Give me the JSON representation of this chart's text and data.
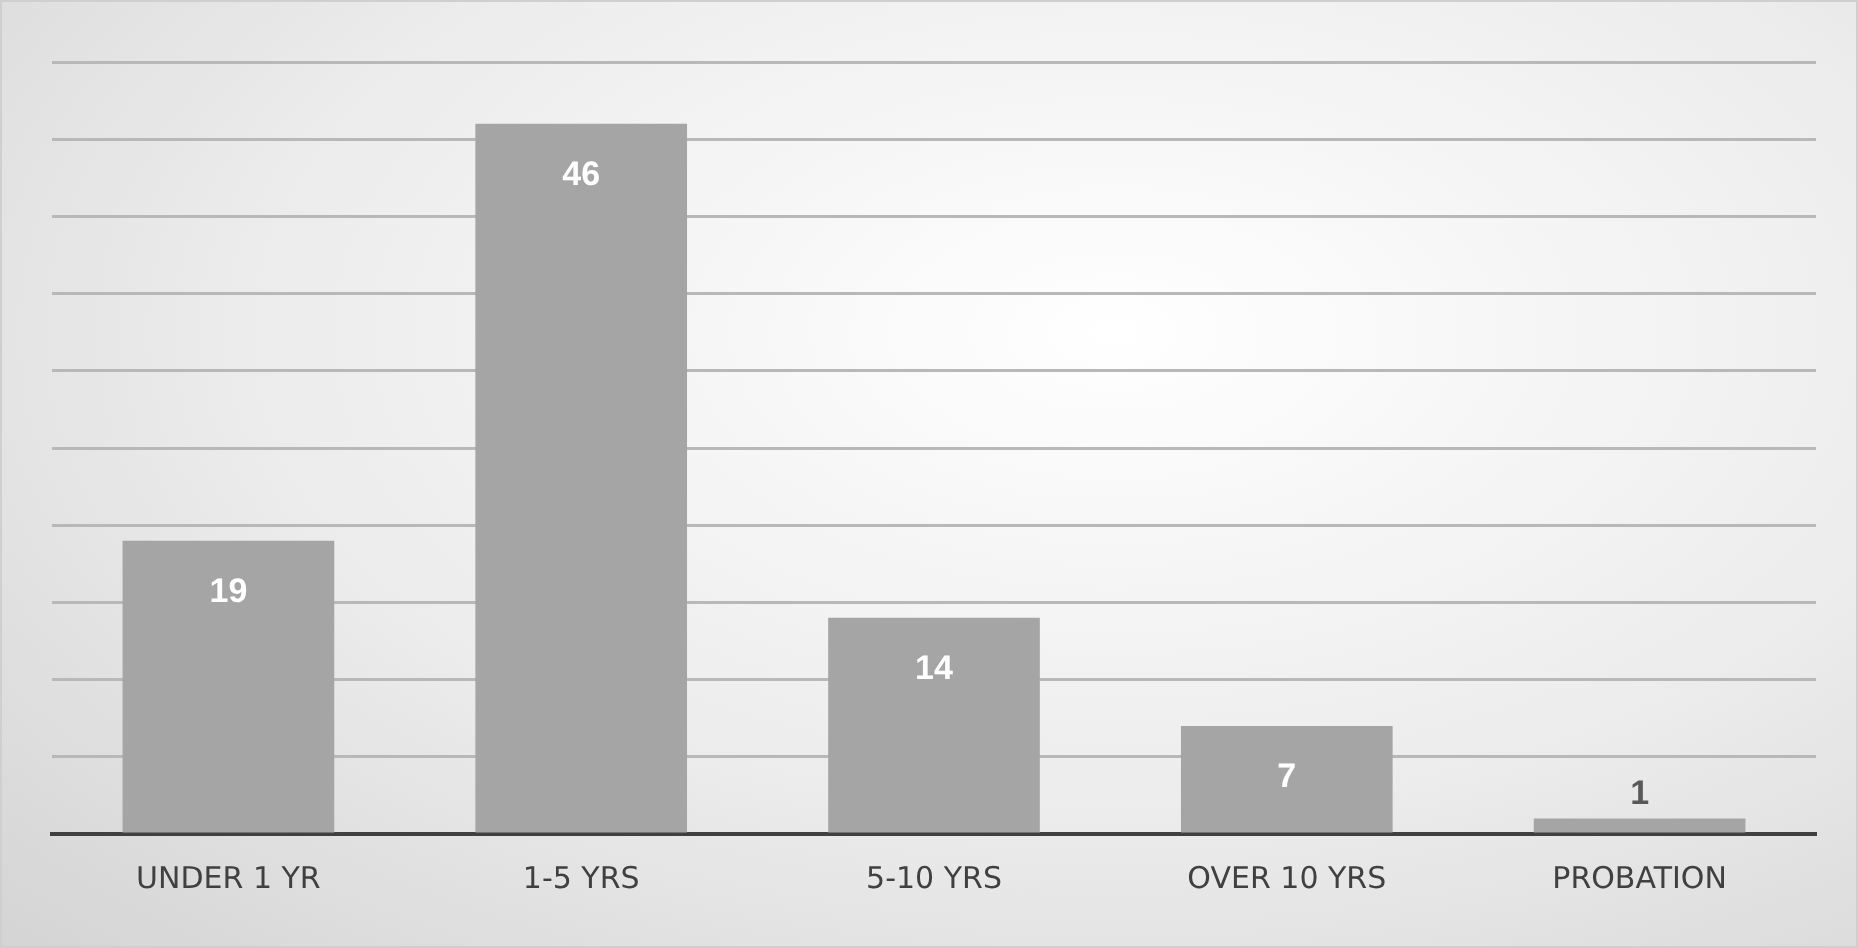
{
  "chart_data": {
    "type": "bar",
    "categories": [
      "UNDER 1 YR",
      "1-5 YRS",
      "5-10 YRS",
      "OVER 10 YRS",
      "PROBATION"
    ],
    "values": [
      19,
      46,
      14,
      7,
      1
    ],
    "color": "#a5a5a5",
    "ylim": [
      0,
      50
    ],
    "yticks": [
      {
        "value": 0,
        "label": null
      },
      {
        "value": 5,
        "label": null
      },
      {
        "value": 10,
        "label": null
      },
      {
        "value": 15,
        "label": null
      },
      {
        "value": 20,
        "label": null
      },
      {
        "value": 25,
        "label": null
      },
      {
        "value": 30,
        "label": null
      },
      {
        "value": 35,
        "label": null
      },
      {
        "value": 40,
        "label": null
      },
      {
        "value": 45,
        "label": null
      },
      {
        "value": 50,
        "label": null
      }
    ],
    "tick_labels": "x",
    "grid": "y",
    "data_labels": true,
    "legend": false
  }
}
